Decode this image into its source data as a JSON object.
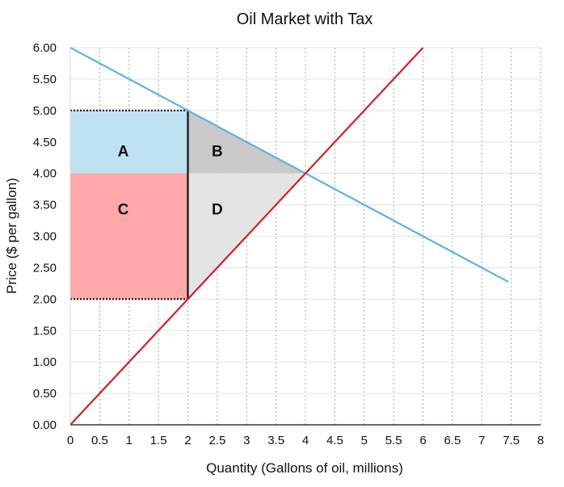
{
  "chart_data": {
    "type": "line",
    "title": "Oil Market with Tax",
    "xlabel": "Quantity (Gallons of oil, millions)",
    "ylabel": "Price ($ per gallon)",
    "xlim": [
      0,
      8
    ],
    "ylim": [
      0,
      6
    ],
    "x_ticks": [
      0,
      0.5,
      1,
      1.5,
      2,
      2.5,
      3,
      3.5,
      4,
      4.5,
      5,
      5.5,
      6,
      6.5,
      7,
      7.5,
      8
    ],
    "x_tick_labels": [
      "0",
      "0.5",
      "1",
      "1.5",
      "2",
      "2.5",
      "3",
      "3.5",
      "4",
      "4.5",
      "5",
      "5.5",
      "6",
      "6.5",
      "7",
      "7.5",
      "8"
    ],
    "y_ticks": [
      0,
      0.5,
      1,
      1.5,
      2,
      2.5,
      3,
      3.5,
      4,
      4.5,
      5,
      5.5,
      6
    ],
    "y_tick_labels": [
      "0.00",
      "0.50",
      "1.00",
      "1.50",
      "2.00",
      "2.50",
      "3.00",
      "3.50",
      "4.00",
      "4.50",
      "5.00",
      "5.50",
      "6.00"
    ],
    "grid": {
      "vertical": "dotted",
      "horizontal": "solid-light"
    },
    "series": [
      {
        "color": "#5bb4e0",
        "points": [
          [
            0,
            6
          ],
          [
            7.45,
            2.275
          ]
        ]
      },
      {
        "color": "#d42020",
        "points": [
          [
            0,
            0
          ],
          [
            6,
            6
          ]
        ]
      }
    ],
    "regions": [
      {
        "label": "A",
        "color": "#bfe2f2",
        "points": [
          [
            0,
            5
          ],
          [
            2,
            5
          ],
          [
            2,
            4
          ],
          [
            0,
            4
          ]
        ],
        "label_at": [
          0.9,
          4.27
        ]
      },
      {
        "label": "B",
        "color": "#c9c9c9",
        "points": [
          [
            2,
            5
          ],
          [
            4,
            4
          ],
          [
            2,
            4
          ]
        ],
        "label_at": [
          2.5,
          4.27
        ]
      },
      {
        "label": "C",
        "color": "#ffa8ac",
        "points": [
          [
            0,
            4
          ],
          [
            2,
            4
          ],
          [
            2,
            2
          ],
          [
            0,
            2
          ]
        ],
        "label_at": [
          0.9,
          3.35
        ]
      },
      {
        "label": "D",
        "color": "#e4e4e4",
        "points": [
          [
            2,
            4
          ],
          [
            4,
            4
          ],
          [
            2,
            2
          ]
        ],
        "label_at": [
          2.5,
          3.35
        ]
      }
    ],
    "reference_lines": [
      {
        "from": [
          0,
          5
        ],
        "to": [
          2,
          5
        ],
        "style": "dotted",
        "color": "#111111"
      },
      {
        "from": [
          0,
          2
        ],
        "to": [
          2,
          2
        ],
        "style": "dotted",
        "color": "#111111"
      },
      {
        "from": [
          2,
          5
        ],
        "to": [
          2,
          2
        ],
        "style": "solid",
        "color": "#111111"
      }
    ]
  }
}
